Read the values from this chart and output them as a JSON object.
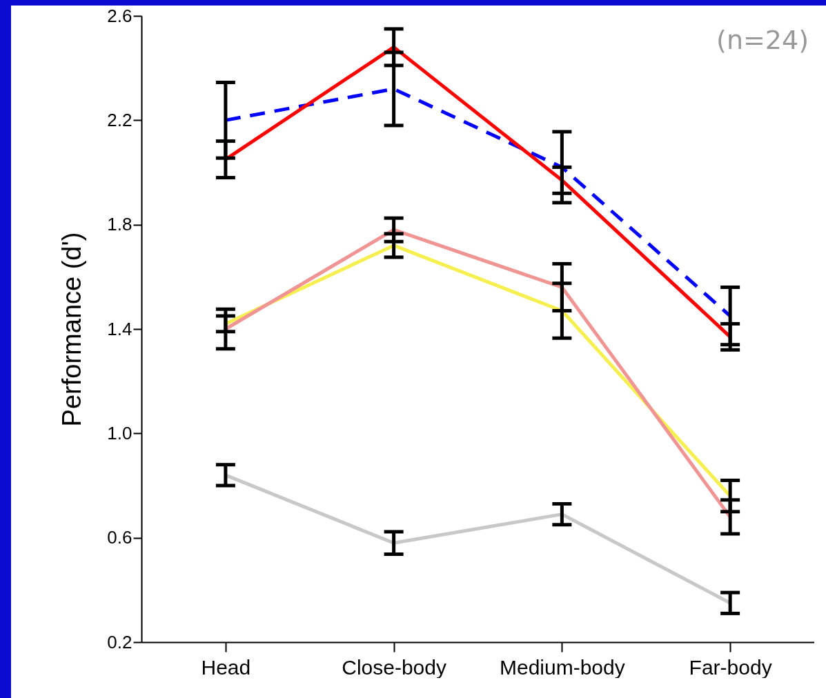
{
  "chart_data": {
    "type": "line",
    "ylabel": "Performance (d')",
    "categories": [
      "Head",
      "Close-body",
      "Medium-body",
      "Far-body"
    ],
    "ylim": [
      0.2,
      2.6
    ],
    "yticks": [
      0.2,
      0.6,
      {
        "value": 1.0,
        "label": "1.0"
      },
      1.4,
      1.8,
      2.2,
      2.6
    ],
    "grid": false,
    "annotations": [
      "(n=24)"
    ],
    "series": [
      {
        "color": "#c8c8c8",
        "values": [
          0.84,
          0.58,
          0.69,
          0.35
        ],
        "errors": [
          0.04,
          0.043,
          0.04,
          0.04
        ],
        "line_style": "solid"
      },
      {
        "color": "#f5f050",
        "values": [
          1.42,
          1.72,
          1.47,
          0.76
        ],
        "errors": [
          0.03,
          0.045,
          0.105,
          0.06
        ],
        "line_style": "solid"
      },
      {
        "color": "#f09494",
        "values": [
          1.4,
          1.78,
          1.56,
          0.68
        ],
        "errors": [
          0.076,
          0.045,
          0.09,
          0.065
        ],
        "line_style": "solid"
      },
      {
        "color": "#0000ff",
        "values": [
          2.2,
          2.32,
          2.02,
          1.45
        ],
        "errors": [
          0.145,
          0.14,
          0.136,
          0.11
        ],
        "line_style": "dashed"
      },
      {
        "color": "#ff0000",
        "values": [
          2.05,
          2.48,
          1.97,
          1.37
        ],
        "errors": [
          0.07,
          0.07,
          0.05,
          0.05
        ],
        "line_style": "solid"
      }
    ]
  }
}
